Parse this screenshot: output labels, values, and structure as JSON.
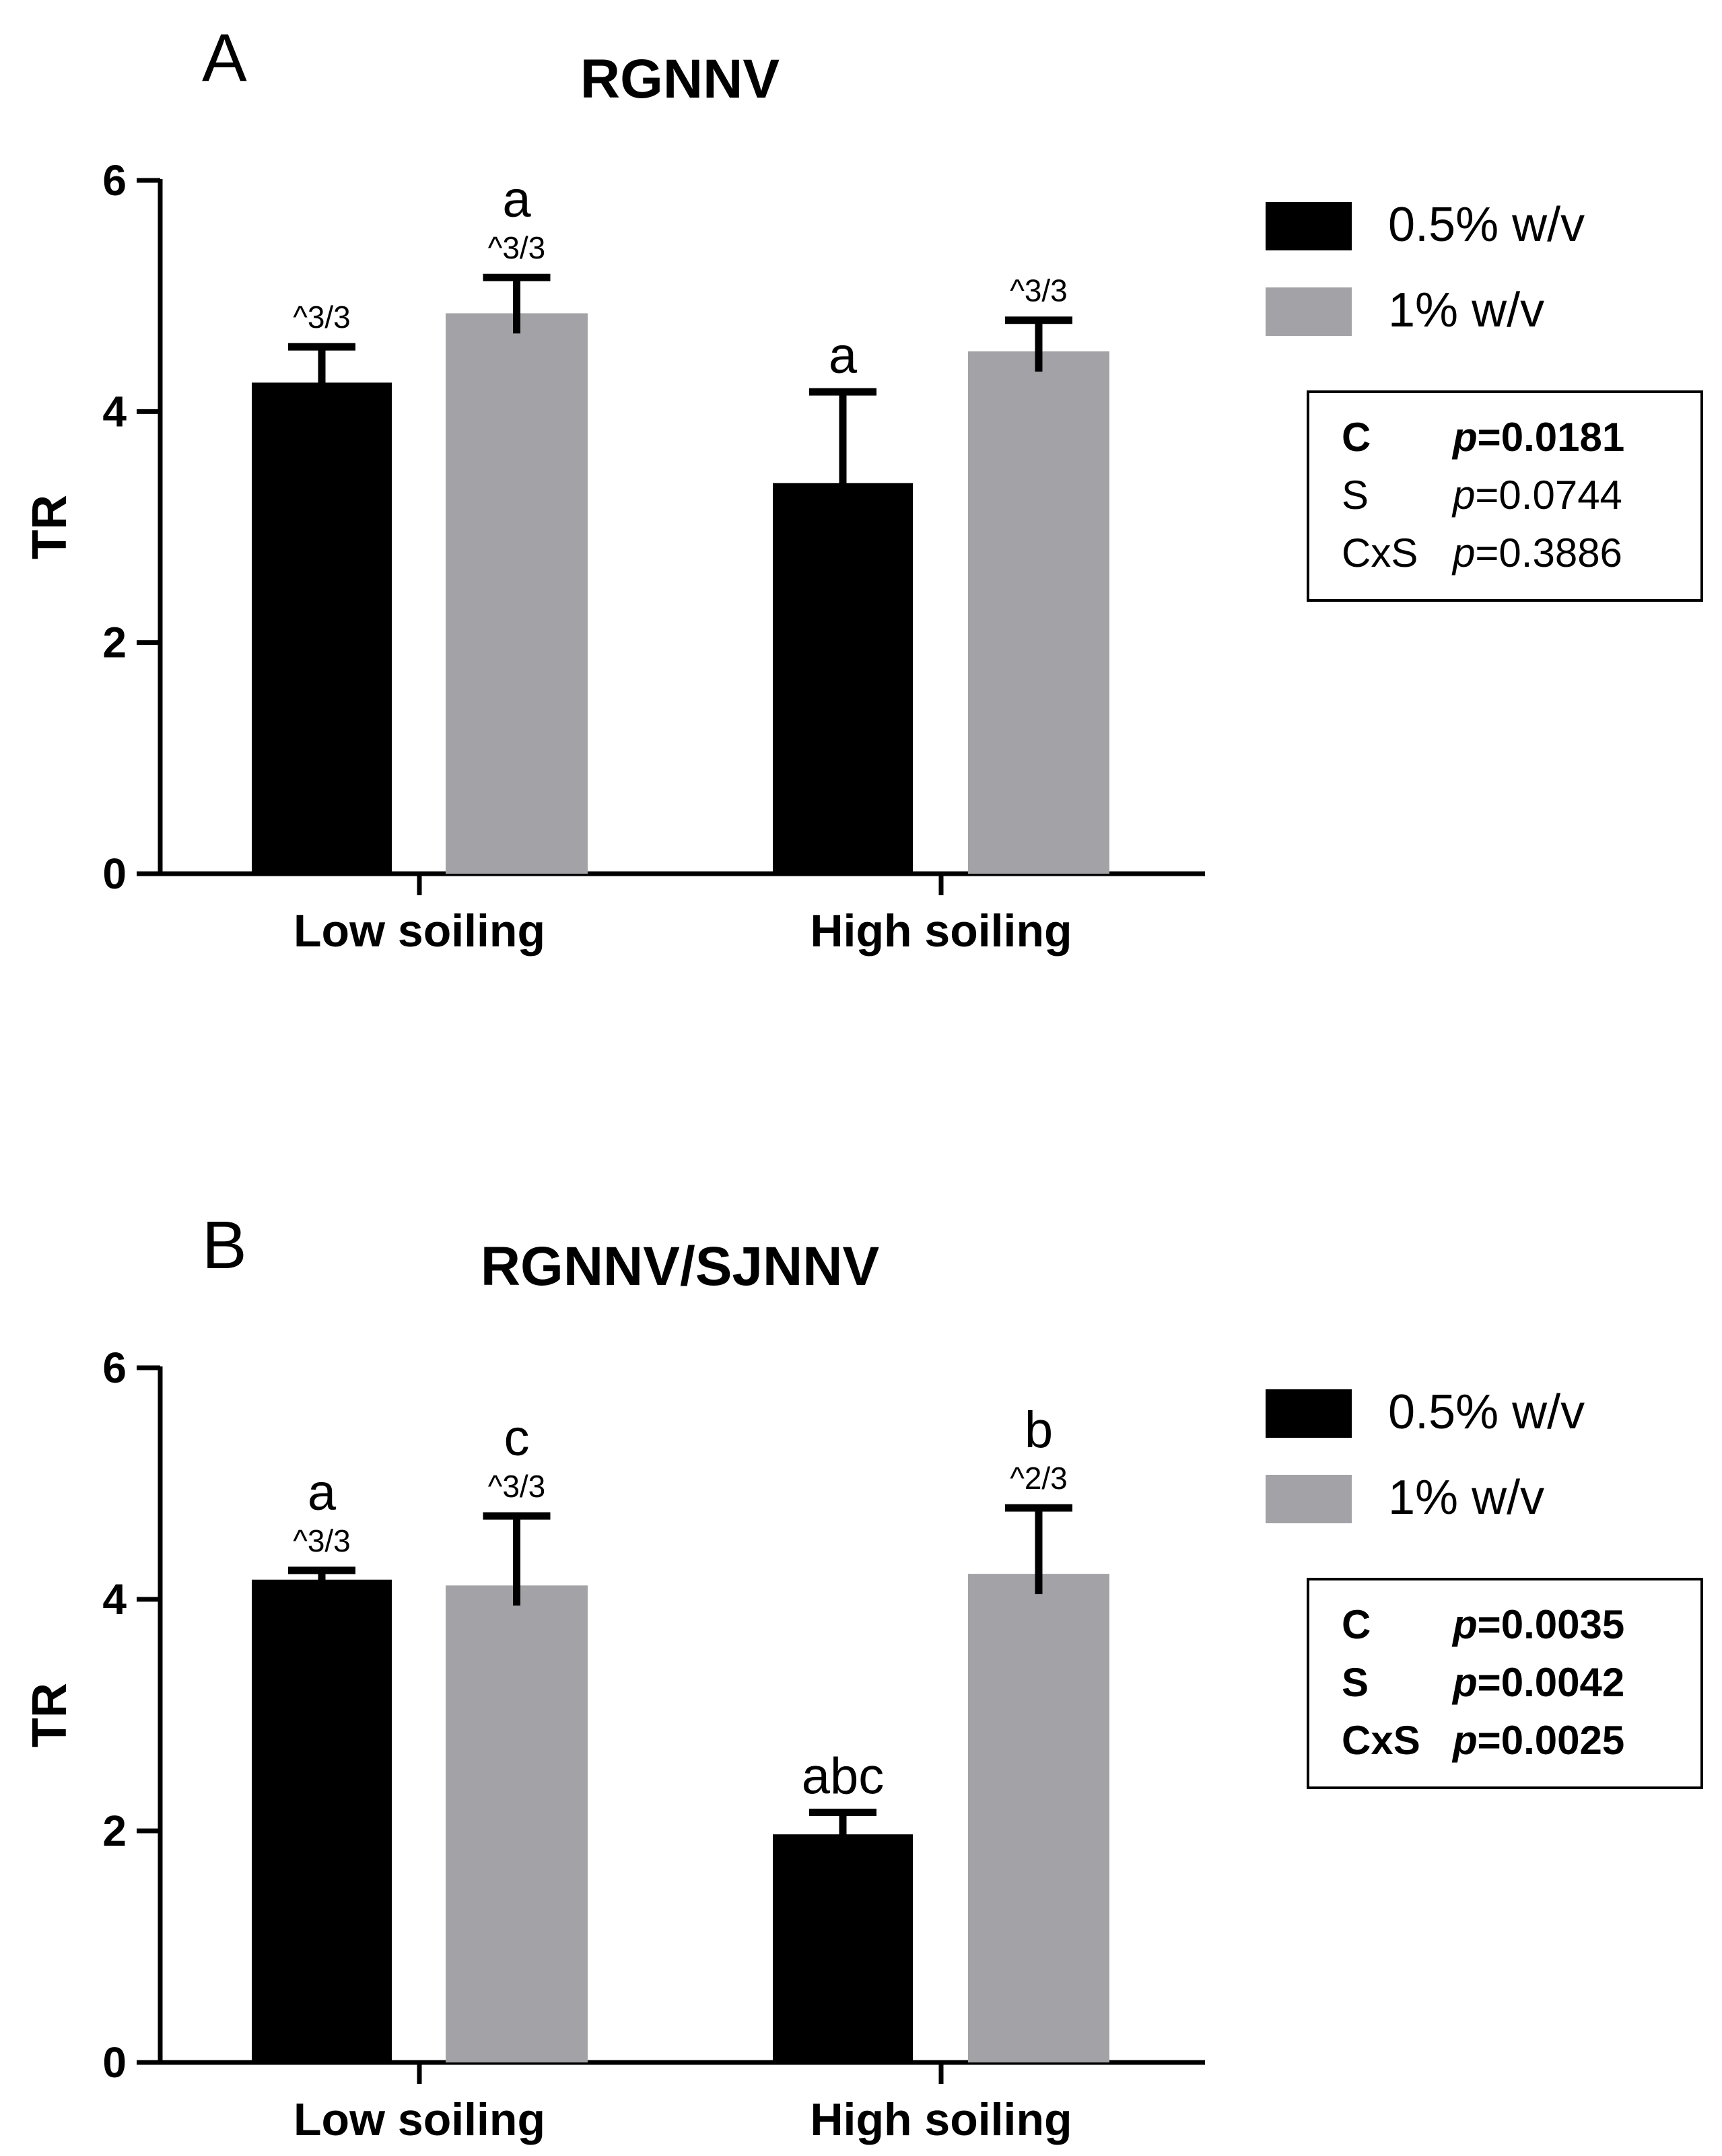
{
  "colors": {
    "black": "#000000",
    "gray": "#a3a2a6",
    "axis": "#000000"
  },
  "chart_data": [
    {
      "type": "bar",
      "panel_label": "A",
      "title": "RGNNV",
      "xlabel": "",
      "ylabel": "TR",
      "ylim": [
        0,
        6
      ],
      "yticks": [
        "0",
        "2",
        "4",
        "6"
      ],
      "categories": [
        "Low soiling",
        "High soiling"
      ],
      "series": [
        {
          "name": "0.5% w/v",
          "color": "#000000",
          "values": [
            4.25,
            3.38
          ],
          "errors": [
            0.31,
            0.79
          ],
          "letters": [
            "",
            "a"
          ],
          "ratios": [
            "^3/3",
            ""
          ]
        },
        {
          "name": "1%  w/v",
          "color": "#a3a2a6",
          "values": [
            4.85,
            4.52
          ],
          "errors": [
            0.31,
            0.27
          ],
          "letters": [
            "a",
            ""
          ],
          "ratios": [
            "^3/3",
            "^3/3"
          ]
        }
      ],
      "legend": [
        "0.5% w/v",
        "1%  w/v"
      ],
      "stats": [
        {
          "factor": "C",
          "p_label": "p",
          "p_value": "=0.0181",
          "bold": true
        },
        {
          "factor": "S",
          "p_label": "p",
          "p_value": "=0.0744",
          "bold": false
        },
        {
          "factor": "CxS",
          "p_label": "p",
          "p_value": "=0.3886",
          "bold": false
        }
      ]
    },
    {
      "type": "bar",
      "panel_label": "B",
      "title": "RGNNV/SJNNV",
      "xlabel": "",
      "ylabel": "TR",
      "ylim": [
        0,
        6
      ],
      "yticks": [
        "0",
        "2",
        "4",
        "6"
      ],
      "categories": [
        "Low soiling",
        "High soiling"
      ],
      "series": [
        {
          "name": "0.5% w/v",
          "color": "#000000",
          "values": [
            4.17,
            1.97
          ],
          "errors": [
            0.08,
            0.19
          ],
          "letters": [
            "a",
            "abc"
          ],
          "ratios": [
            "^3/3",
            ""
          ]
        },
        {
          "name": "1% w/v",
          "color": "#a3a2a6",
          "values": [
            4.12,
            4.22
          ],
          "errors": [
            0.6,
            0.57
          ],
          "letters": [
            "c",
            "b"
          ],
          "ratios": [
            "^3/3",
            "^2/3"
          ]
        }
      ],
      "legend": [
        "0.5% w/v",
        "1% w/v"
      ],
      "stats": [
        {
          "factor": "C",
          "p_label": "p",
          "p_value": "=0.0035",
          "bold": true
        },
        {
          "factor": "S",
          "p_label": "p",
          "p_value": "=0.0042",
          "bold": true
        },
        {
          "factor": "CxS",
          "p_label": "p",
          "p_value": "=0.0025",
          "bold": true
        }
      ]
    }
  ]
}
